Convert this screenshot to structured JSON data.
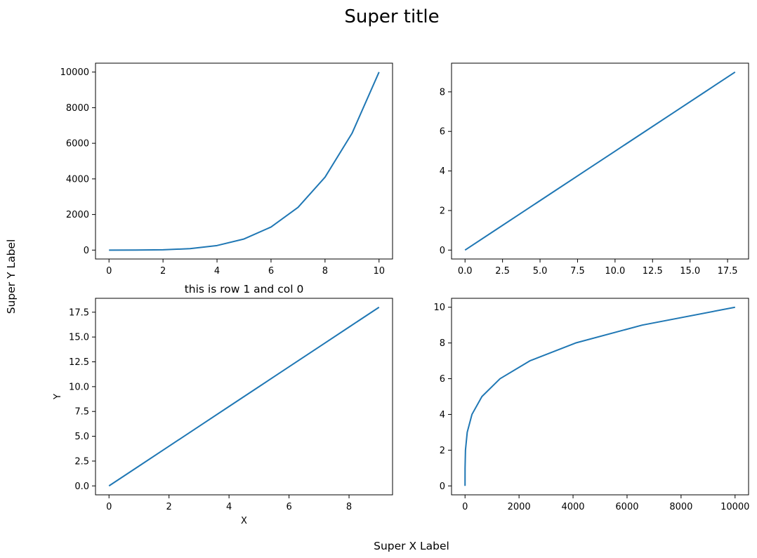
{
  "figure": {
    "suptitle": "Super title",
    "supxlabel": "Super X Label",
    "supylabel": "Super Y Label",
    "line_color": "#1f77b4"
  },
  "chart_data": [
    {
      "type": "line",
      "title": "",
      "xlabel": "",
      "ylabel": "",
      "x": [
        0,
        1,
        2,
        3,
        4,
        5,
        6,
        7,
        8,
        9,
        10
      ],
      "series": [
        {
          "values": [
            0,
            1,
            16,
            81,
            256,
            625,
            1296,
            2401,
            4096,
            6561,
            10000
          ]
        }
      ],
      "xlim": [
        -0.5,
        10.5
      ],
      "ylim": [
        -500,
        10500
      ],
      "xticks": [
        0,
        2,
        4,
        6,
        8,
        10
      ],
      "xtick_labels": [
        "0",
        "2",
        "4",
        "6",
        "8",
        "10"
      ],
      "yticks": [
        0,
        2000,
        4000,
        6000,
        8000,
        10000
      ],
      "ytick_labels": [
        "0",
        "2000",
        "4000",
        "6000",
        "8000",
        "10000"
      ]
    },
    {
      "type": "line",
      "title": "",
      "xlabel": "",
      "ylabel": "",
      "x": [
        0,
        2,
        4,
        6,
        8,
        10,
        12,
        14,
        16,
        18
      ],
      "series": [
        {
          "values": [
            0,
            1,
            2,
            3,
            4,
            5,
            6,
            7,
            8,
            9
          ]
        }
      ],
      "xlim": [
        -0.9,
        18.9
      ],
      "ylim": [
        -0.45,
        9.45
      ],
      "xticks": [
        0,
        2.5,
        5,
        7.5,
        10,
        12.5,
        15,
        17.5
      ],
      "xtick_labels": [
        "0.0",
        "2.5",
        "5.0",
        "7.5",
        "10.0",
        "12.5",
        "15.0",
        "17.5"
      ],
      "yticks": [
        0,
        2,
        4,
        6,
        8
      ],
      "ytick_labels": [
        "0",
        "2",
        "4",
        "6",
        "8"
      ]
    },
    {
      "type": "line",
      "title": "this is row 1 and col 0",
      "xlabel": "X",
      "ylabel": "Y",
      "x": [
        0,
        1,
        2,
        3,
        4,
        5,
        6,
        7,
        8,
        9
      ],
      "series": [
        {
          "values": [
            0,
            2,
            4,
            6,
            8,
            10,
            12,
            14,
            16,
            18
          ]
        }
      ],
      "xlim": [
        -0.45,
        9.45
      ],
      "ylim": [
        -0.9,
        18.9
      ],
      "xticks": [
        0,
        2,
        4,
        6,
        8
      ],
      "xtick_labels": [
        "0",
        "2",
        "4",
        "6",
        "8"
      ],
      "yticks": [
        0,
        2.5,
        5,
        7.5,
        10,
        12.5,
        15,
        17.5
      ],
      "ytick_labels": [
        "0.0",
        "2.5",
        "5.0",
        "7.5",
        "10.0",
        "12.5",
        "15.0",
        "17.5"
      ]
    },
    {
      "type": "line",
      "title": "",
      "xlabel": "",
      "ylabel": "",
      "x": [
        0,
        1,
        16,
        81,
        256,
        625,
        1296,
        2401,
        4096,
        6561,
        10000
      ],
      "series": [
        {
          "values": [
            0,
            1,
            2,
            3,
            4,
            5,
            6,
            7,
            8,
            9,
            10
          ]
        }
      ],
      "xlim": [
        -500,
        10500
      ],
      "ylim": [
        -0.5,
        10.5
      ],
      "xticks": [
        0,
        2000,
        4000,
        6000,
        8000,
        10000
      ],
      "xtick_labels": [
        "0",
        "2000",
        "4000",
        "6000",
        "8000",
        "10000"
      ],
      "yticks": [
        0,
        2,
        4,
        6,
        8,
        10
      ],
      "ytick_labels": [
        "0",
        "2",
        "4",
        "6",
        "8",
        "10"
      ]
    }
  ]
}
